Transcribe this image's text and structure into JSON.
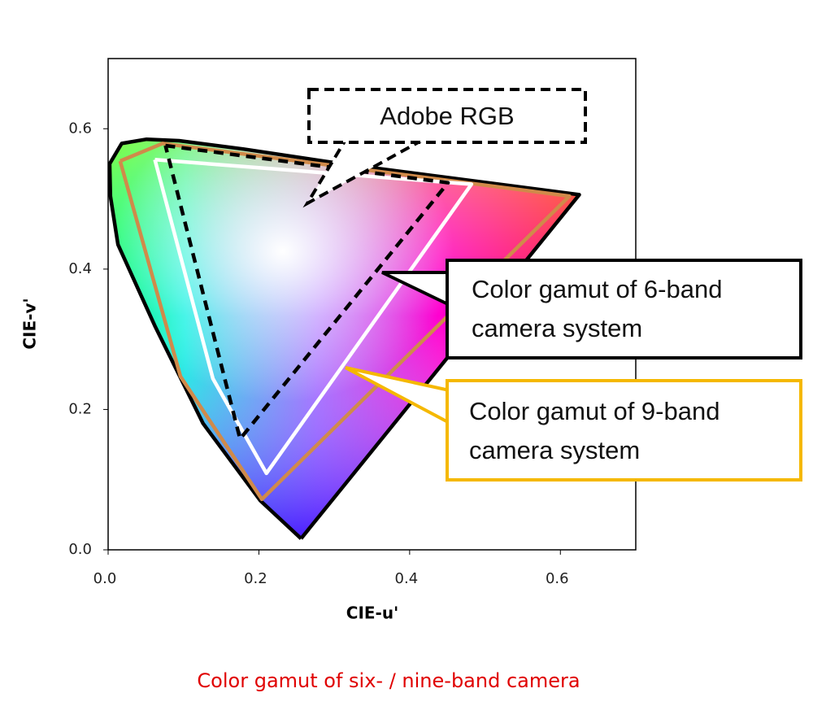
{
  "chart_data": {
    "type": "line",
    "xlabel": "CIE-u'",
    "ylabel": "CIE-v'",
    "caption": "Color gamut of six- / nine-band camera",
    "xlim": [
      0,
      0.7
    ],
    "ylim": [
      0,
      0.7
    ],
    "xticks": [
      {
        "value": 0,
        "label": "0.0"
      },
      0.2,
      0.4,
      0.6
    ],
    "yticks": [
      {
        "value": 0,
        "label": "0.0"
      },
      0.2,
      0.4,
      0.6
    ],
    "series": [
      {
        "color": "#000000",
        "dash": false,
        "filled": true,
        "x": [
          0.256,
          0.202,
          0.126,
          0.062,
          0.013,
          0.003,
          0.002,
          0.018,
          0.051,
          0.094,
          0.18,
          0.31,
          0.625,
          0.256
        ],
        "values": [
          0.016,
          0.07,
          0.18,
          0.319,
          0.435,
          0.504,
          0.55,
          0.579,
          0.585,
          0.583,
          0.571,
          0.55,
          0.506,
          0.016
        ]
      },
      {
        "color": "#d08a4a",
        "dash": false,
        "x": [
          0.016,
          0.072,
          0.612,
          0.204,
          0.096,
          0.016
        ],
        "values": [
          0.554,
          0.579,
          0.504,
          0.072,
          0.247,
          0.554
        ]
      },
      {
        "color": "#ffffff",
        "dash": false,
        "x": [
          0.062,
          0.482,
          0.21,
          0.139,
          0.062
        ],
        "values": [
          0.556,
          0.521,
          0.109,
          0.244,
          0.556
        ]
      },
      {
        "color": "#000000",
        "dash": true,
        "x": [
          0.076,
          0.451,
          0.175,
          0.076
        ],
        "values": [
          0.576,
          0.523,
          0.158,
          0.576
        ]
      }
    ],
    "annotations": [
      {
        "lines": [
          "Adobe RGB"
        ]
      },
      {
        "lines": [
          "Color gamut of 6-band",
          "camera system"
        ]
      },
      {
        "lines": [
          "Color gamut of 9-band",
          "camera system"
        ]
      }
    ]
  }
}
